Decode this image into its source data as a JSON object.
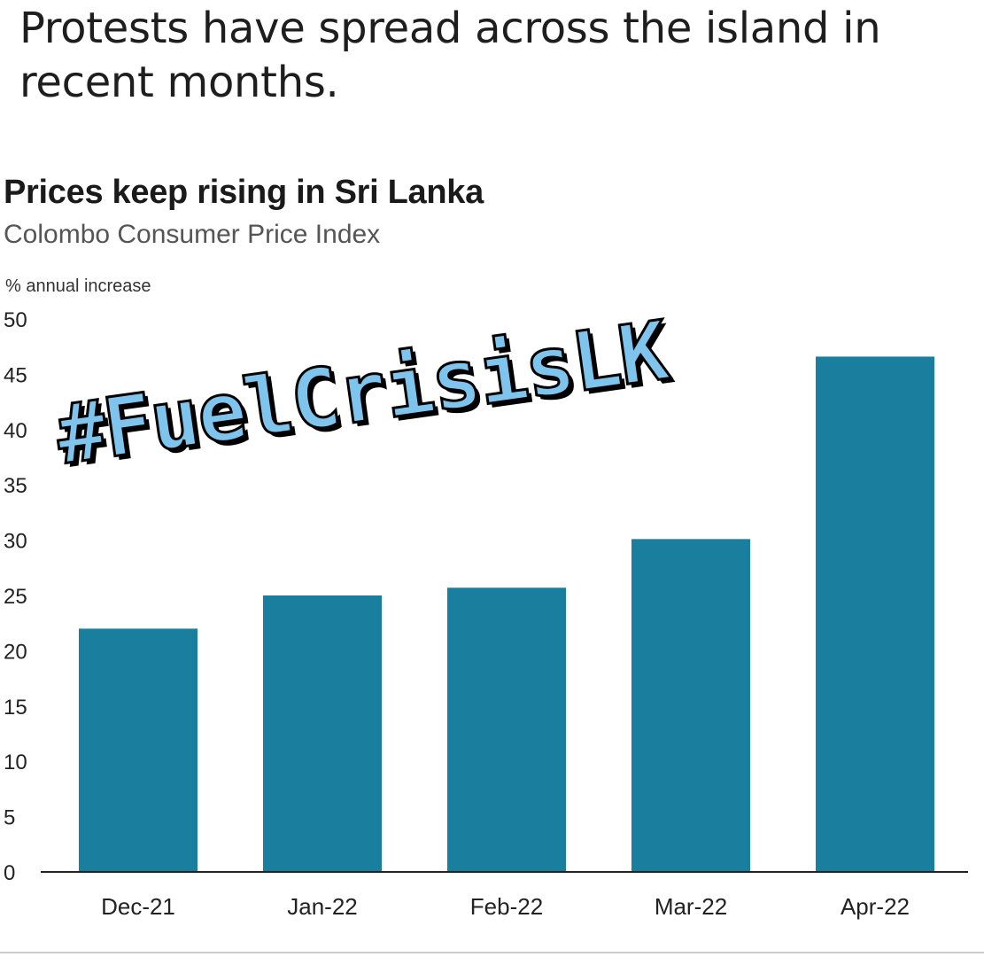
{
  "headline": "Protests have spread across the island in recent months.",
  "overlay_text": "#FuelCrisisLK",
  "colors": {
    "bar": "#1a7f9e",
    "axis": "#222222",
    "overlay": "#7fc4ec"
  },
  "chart_data": {
    "type": "bar",
    "title": "Prices keep rising in Sri Lanka",
    "subtitle": "Colombo Consumer Price Index",
    "ylabel": "% annual increase",
    "xlabel": "",
    "categories": [
      "Dec-21",
      "Jan-22",
      "Feb-22",
      "Mar-22",
      "Apr-22"
    ],
    "values": [
      22.0,
      25.0,
      25.7,
      30.1,
      46.6
    ],
    "ylim": [
      0,
      50
    ],
    "yticks": [
      0,
      5,
      10,
      15,
      20,
      25,
      30,
      35,
      40,
      45,
      50
    ],
    "grid": false,
    "legend": "none"
  }
}
